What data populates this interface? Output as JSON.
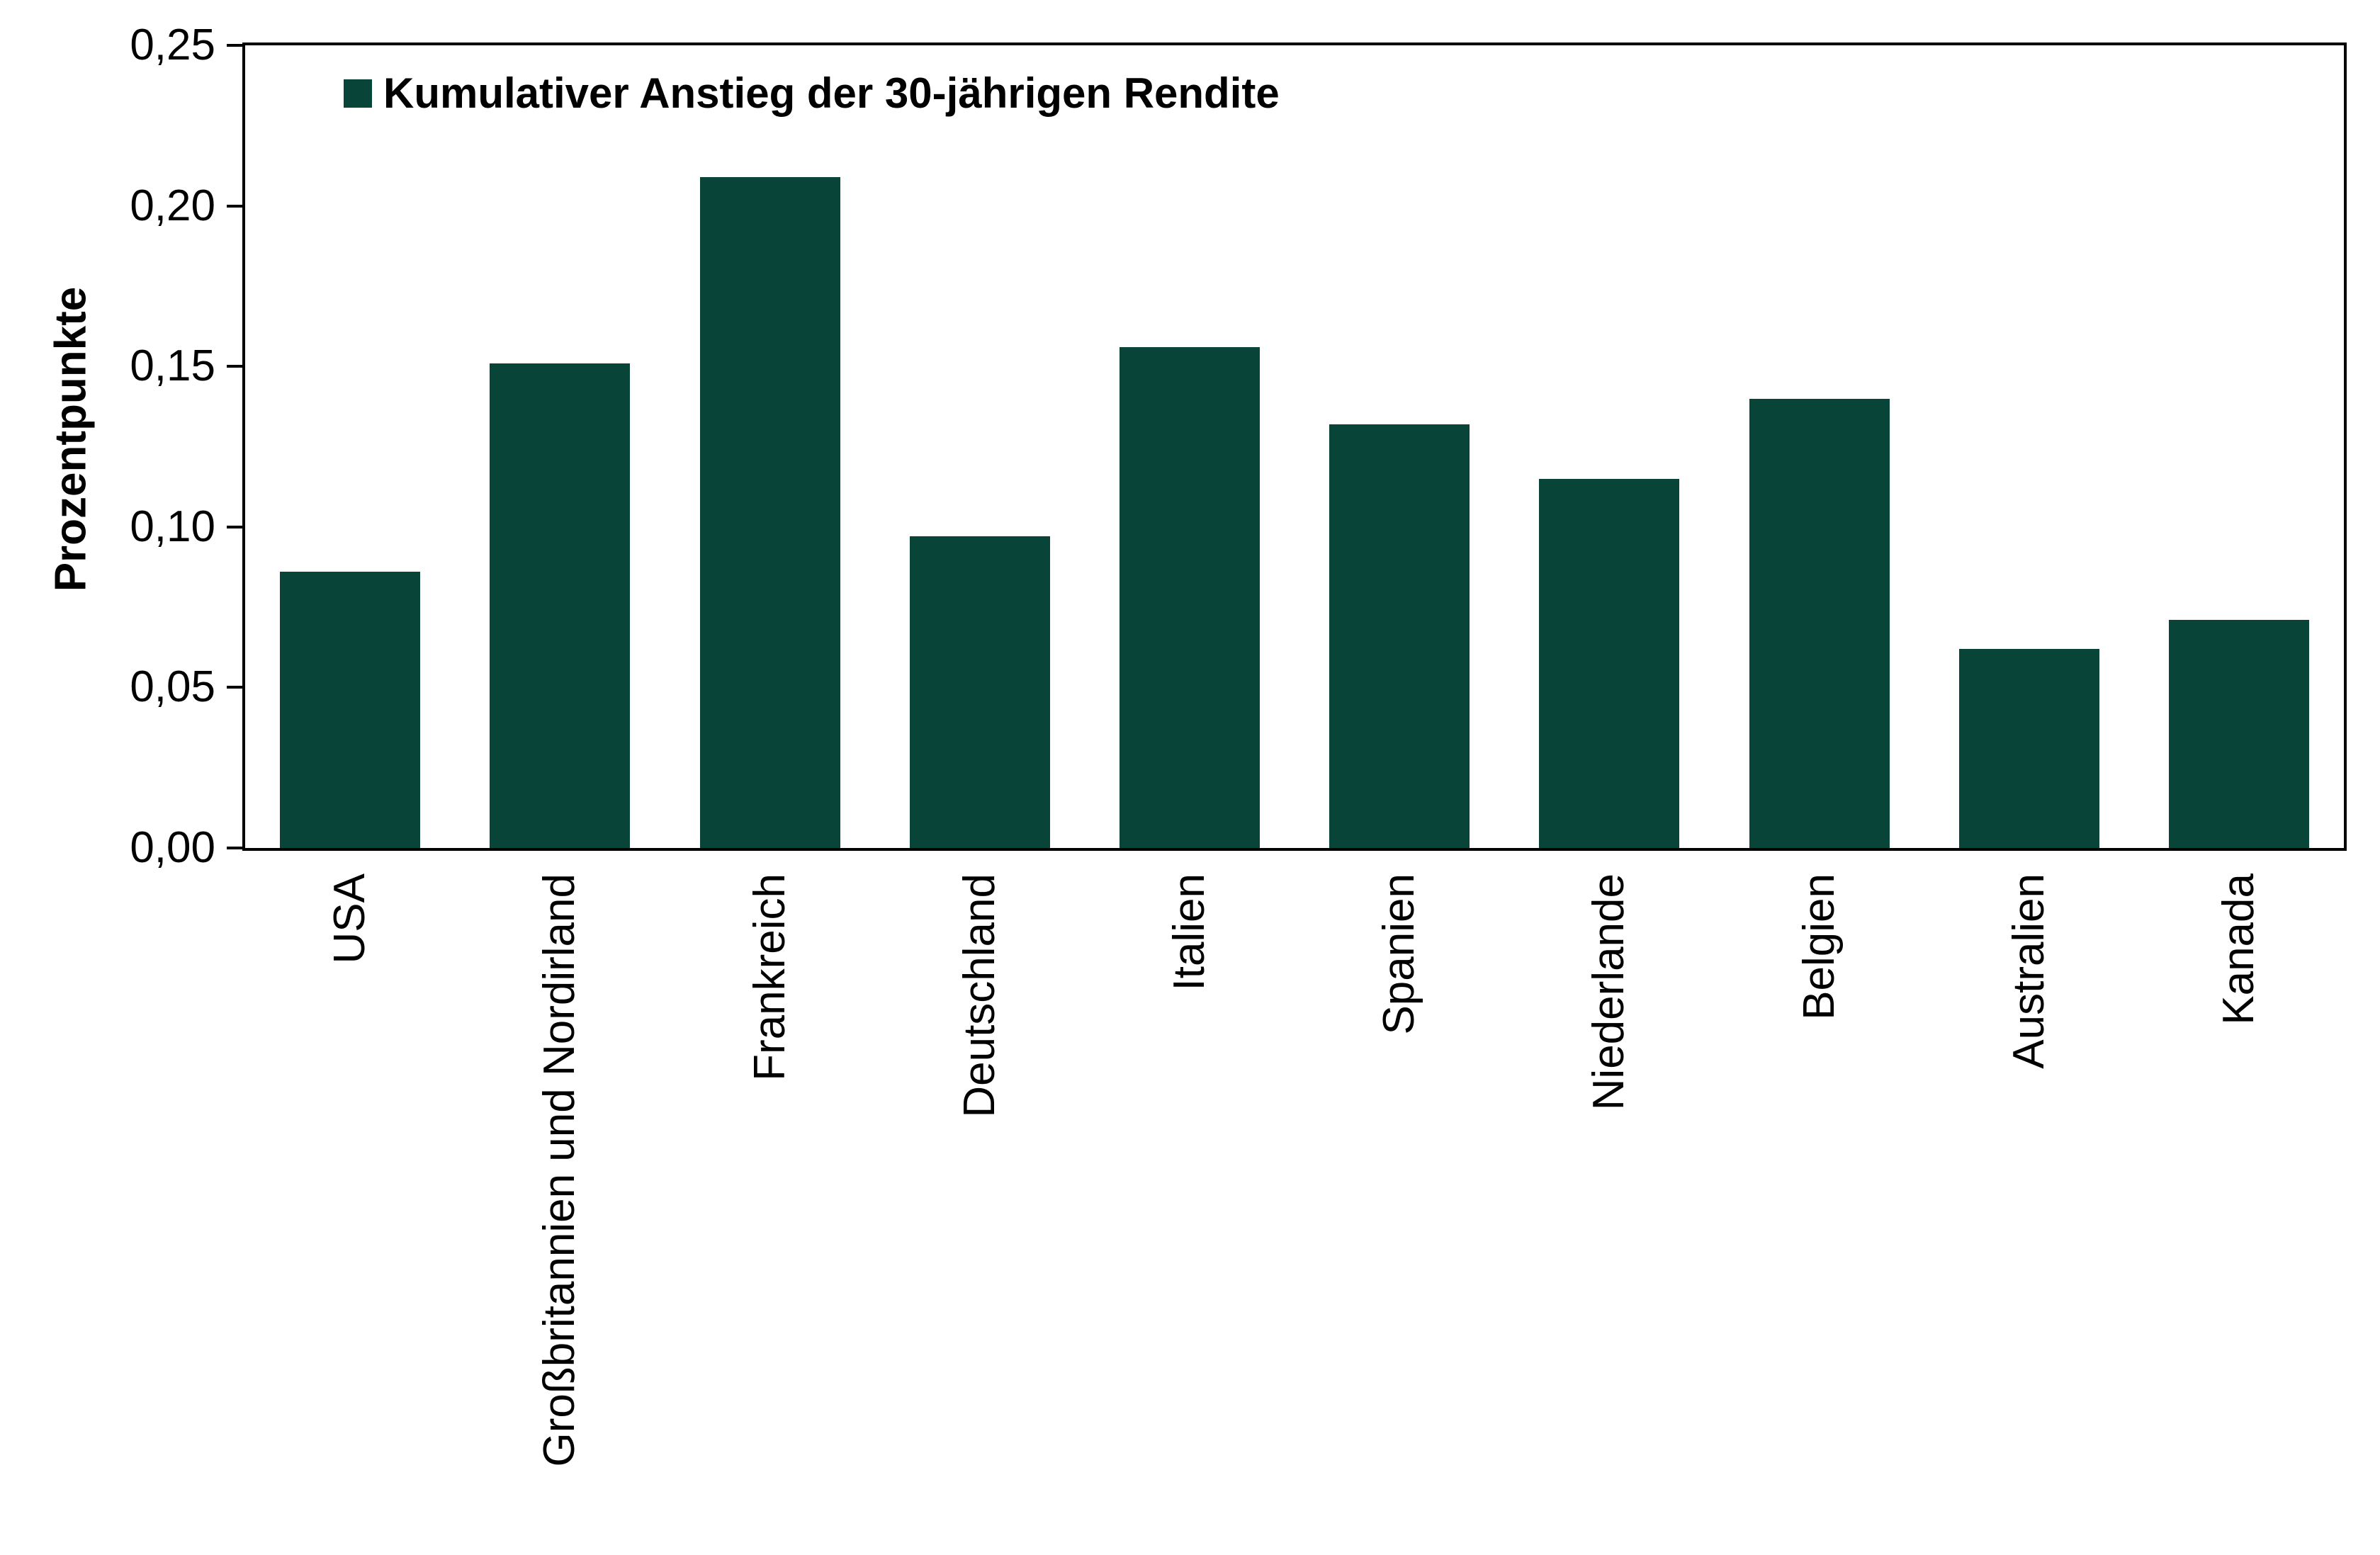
{
  "chart_data": {
    "type": "bar",
    "legend": "Kumulativer Anstieg der 30-jährigen Rendite",
    "ylabel": "Prozentpunkte",
    "categories": [
      "USA",
      "Großbritannien und Nordirland",
      "Frankreich",
      "Deutschland",
      "Italien",
      "Spanien",
      "Niederlande",
      "Belgien",
      "Australien",
      "Kanada"
    ],
    "values": [
      0.086,
      0.151,
      0.209,
      0.097,
      0.156,
      0.132,
      0.115,
      0.14,
      0.062,
      0.071
    ],
    "ylim": [
      0,
      0.25
    ],
    "yticks": [
      {
        "value": 0.0,
        "label": "0,00"
      },
      {
        "value": 0.05,
        "label": "0,05"
      },
      {
        "value": 0.1,
        "label": "0,10"
      },
      {
        "value": 0.15,
        "label": "0,15"
      },
      {
        "value": 0.2,
        "label": "0,20"
      },
      {
        "value": 0.25,
        "label": "0,25"
      }
    ],
    "grid": false,
    "legend_position": "top-left-inside",
    "bar_color": "#084538",
    "axis_color": "#000000",
    "background_color": "#ffffff",
    "decimal_separator": "comma"
  }
}
